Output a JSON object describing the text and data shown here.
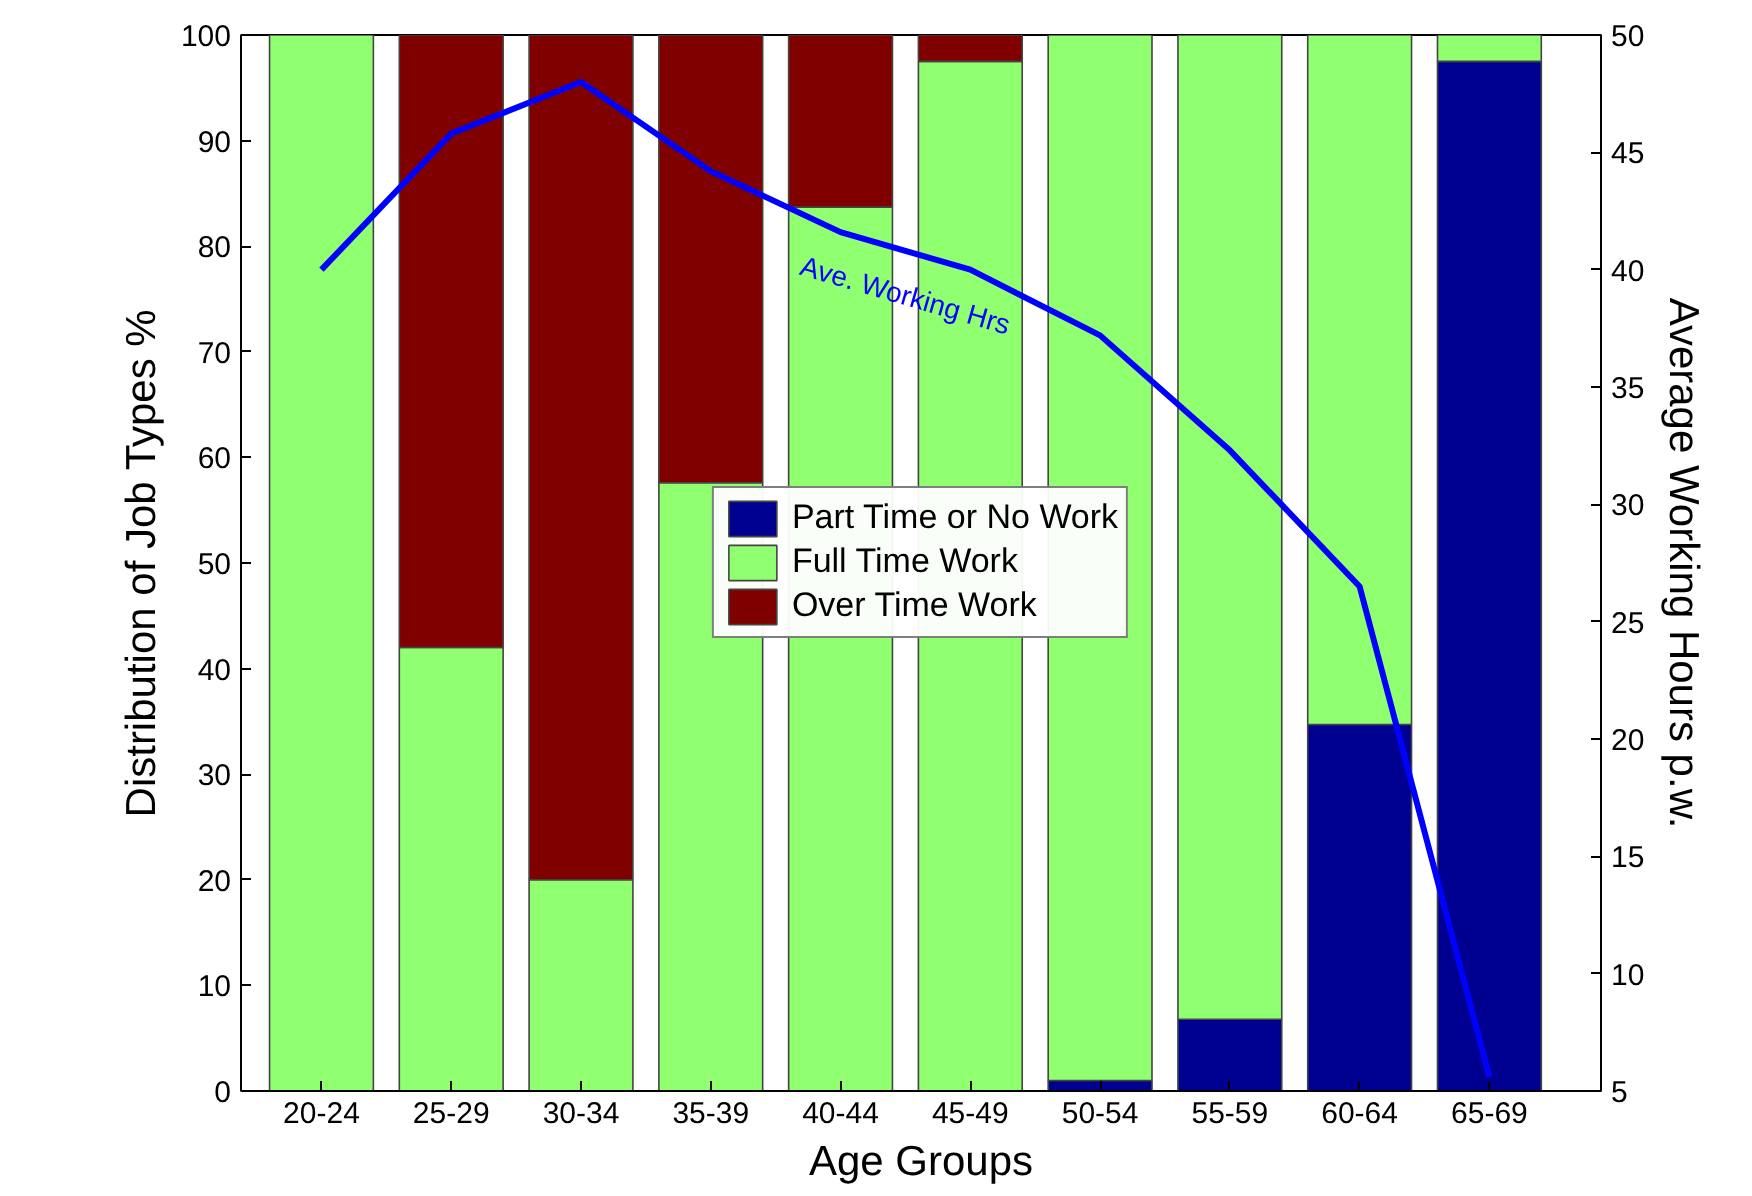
{
  "chart_data": {
    "type": "bar",
    "stacked": true,
    "xlabel": "Age Groups",
    "ylabel": "Distribution of Job Types %",
    "y2label": "Average Working Hours p.w.",
    "categories": [
      "20-24",
      "25-29",
      "30-34",
      "35-39",
      "40-44",
      "45-49",
      "50-54",
      "55-59",
      "60-64",
      "65-69"
    ],
    "series": [
      {
        "name": "Part Time or No Work",
        "color": "#000090",
        "values": [
          0,
          0,
          0,
          0,
          0,
          0,
          1,
          6.8,
          34.7,
          97.5
        ]
      },
      {
        "name": "Full Time Work",
        "color": "#90ff70",
        "values": [
          100,
          42,
          20,
          57.6,
          83.7,
          97.5,
          99,
          93.2,
          65.3,
          2.5
        ]
      },
      {
        "name": "Over Time Work",
        "color": "#800000",
        "values": [
          0,
          58,
          80,
          42.4,
          16.3,
          2.5,
          0,
          0,
          0,
          0
        ]
      },
      {
        "type": "line",
        "axis": "y2",
        "color": "#0000ff",
        "values": [
          40,
          45.8,
          48,
          44.2,
          41.6,
          40,
          37.2,
          32.3,
          26.5,
          5.6
        ]
      }
    ],
    "annotations": [
      "Ave. Working Hrs"
    ],
    "ylim": [
      0,
      100
    ],
    "yticks": [
      0,
      10,
      20,
      30,
      40,
      50,
      60,
      70,
      80,
      90,
      100
    ],
    "y2lim": [
      5,
      50
    ],
    "y2ticks": [
      5,
      10,
      15,
      20,
      25,
      30,
      35,
      40,
      45,
      50
    ],
    "legend": "center",
    "grid": false
  }
}
